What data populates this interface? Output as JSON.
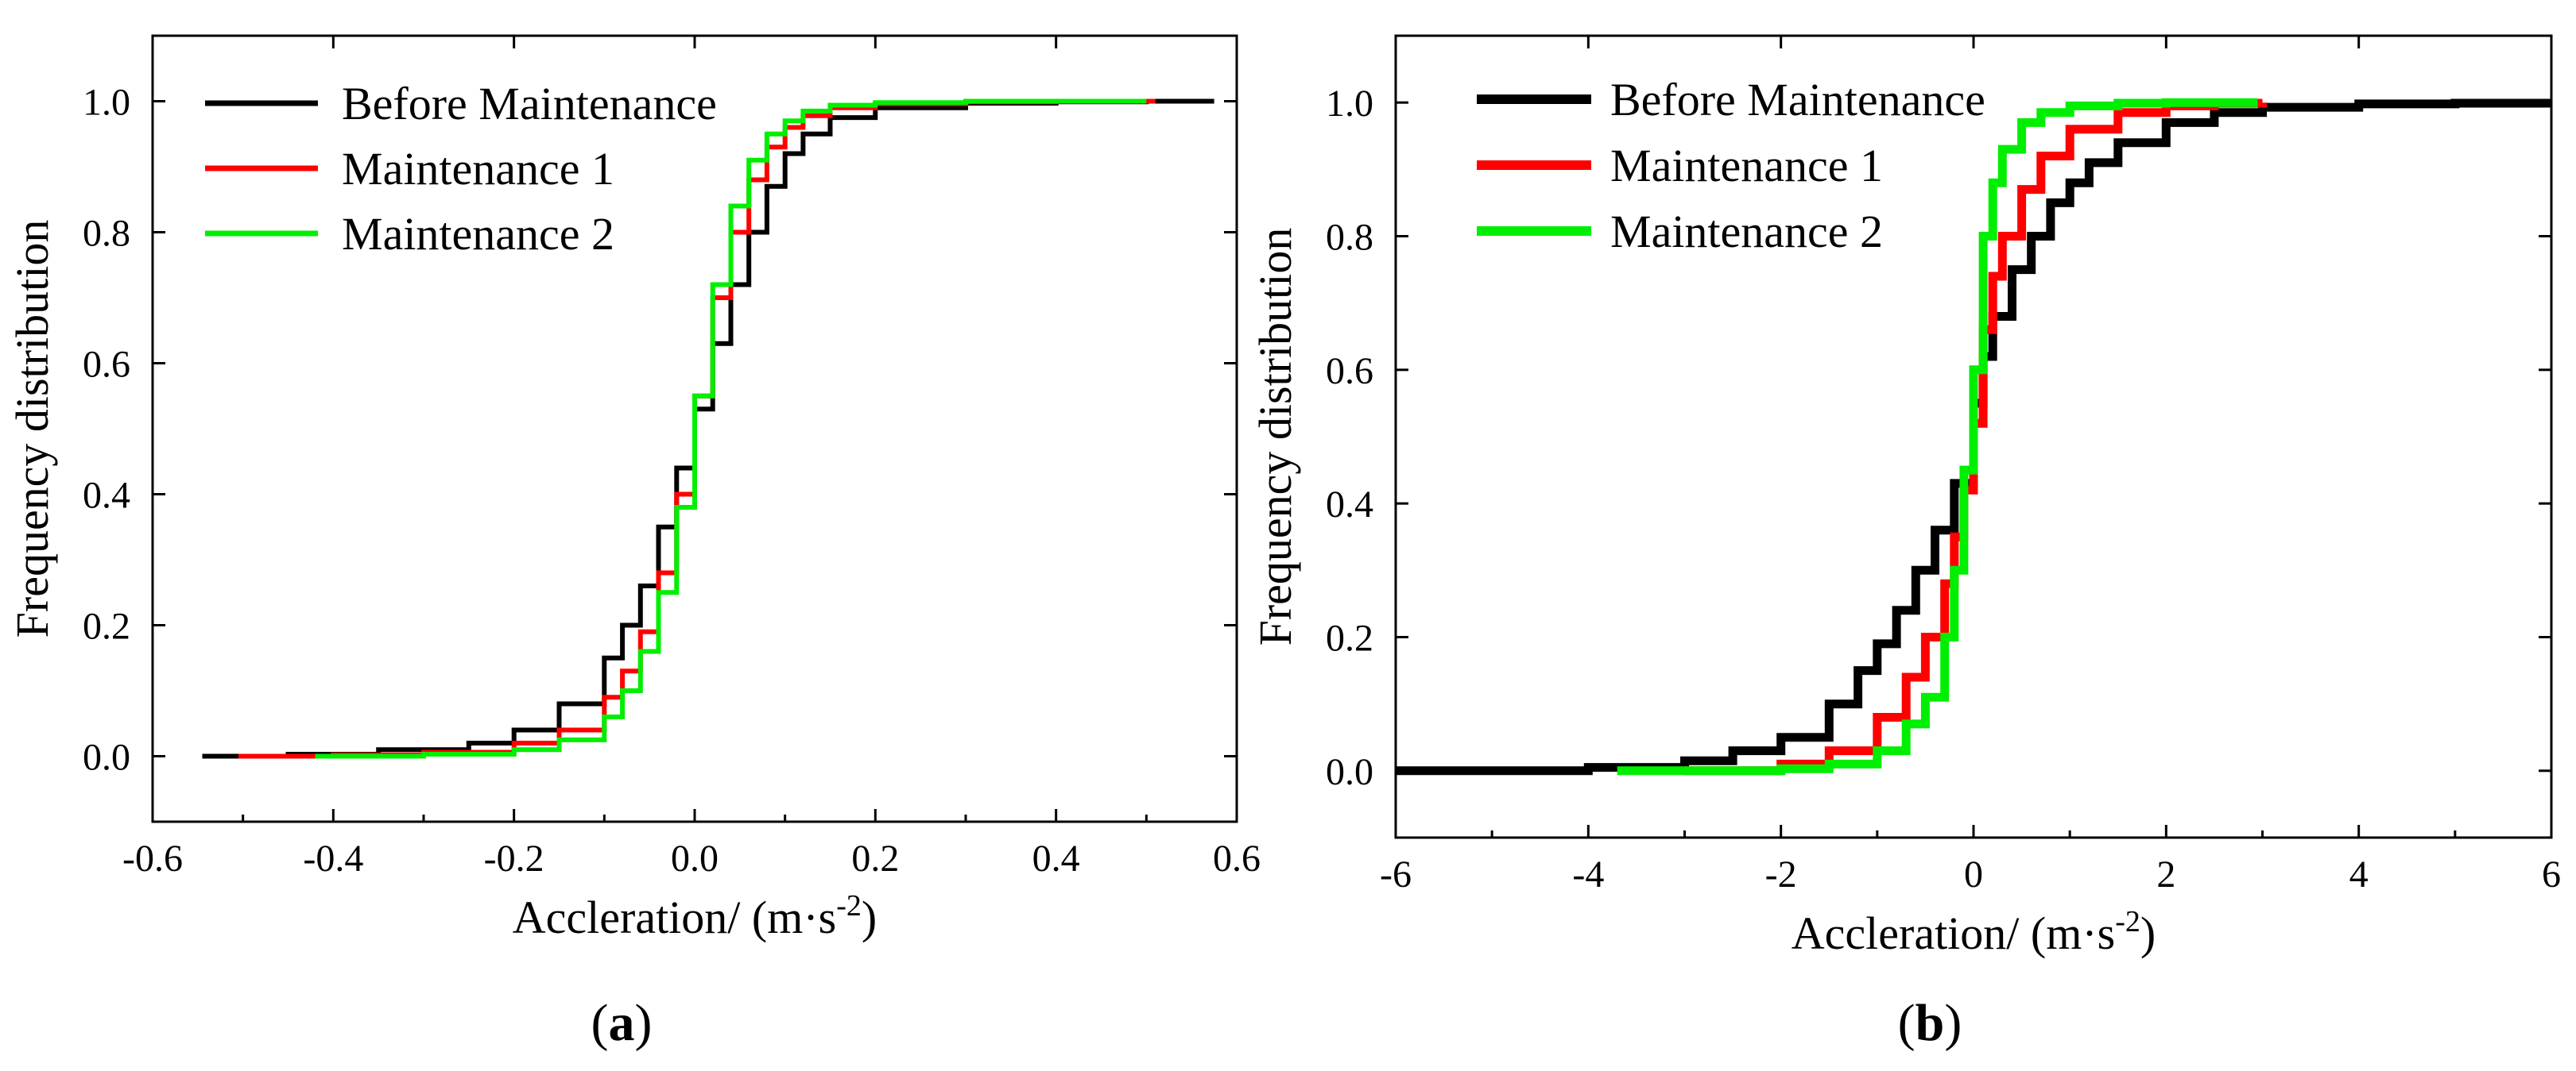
{
  "chart_data": [
    {
      "type": "line",
      "subtype": "step-cdf",
      "panel_label": "a",
      "title": "",
      "xlabel": "Accleration/ (m·s",
      "xlabel_superscript": "-2",
      "xlabel_suffix": ")",
      "ylabel": "Frequency distribution",
      "xlim": [
        -0.6,
        0.6
      ],
      "ylim": [
        -0.1,
        1.1
      ],
      "xticks": [
        -0.6,
        -0.4,
        -0.2,
        0.0,
        0.2,
        0.4,
        0.6
      ],
      "xtick_labels": [
        "-0.6",
        "-0.4",
        "-0.2",
        "0.0",
        "0.2",
        "0.4",
        "0.6"
      ],
      "yticks": [
        0.0,
        0.2,
        0.4,
        0.6,
        0.8,
        1.0
      ],
      "ytick_labels": [
        "0.0",
        "0.2",
        "0.4",
        "0.6",
        "0.8",
        "1.0"
      ],
      "legend_position": "top-left",
      "series": [
        {
          "name": "Before Maintenance",
          "color": "#000000",
          "x": [
            -0.545,
            -0.45,
            -0.35,
            -0.25,
            -0.2,
            -0.15,
            -0.1,
            -0.08,
            -0.06,
            -0.04,
            -0.02,
            0.0,
            0.02,
            0.04,
            0.06,
            0.08,
            0.1,
            0.12,
            0.15,
            0.2,
            0.3,
            0.4,
            0.5,
            0.575
          ],
          "y": [
            0.0,
            0.003,
            0.01,
            0.02,
            0.04,
            0.08,
            0.15,
            0.2,
            0.26,
            0.35,
            0.44,
            0.53,
            0.63,
            0.72,
            0.8,
            0.87,
            0.92,
            0.95,
            0.975,
            0.99,
            0.997,
            0.999,
            1.0,
            1.0
          ]
        },
        {
          "name": "Maintenance 1",
          "color": "#ff0000",
          "x": [
            -0.505,
            -0.4,
            -0.3,
            -0.2,
            -0.15,
            -0.1,
            -0.08,
            -0.06,
            -0.04,
            -0.02,
            0.0,
            0.02,
            0.04,
            0.06,
            0.08,
            0.1,
            0.12,
            0.15,
            0.2,
            0.3,
            0.4,
            0.51
          ],
          "y": [
            0.0,
            0.002,
            0.006,
            0.02,
            0.04,
            0.09,
            0.13,
            0.19,
            0.28,
            0.4,
            0.55,
            0.7,
            0.8,
            0.88,
            0.93,
            0.96,
            0.978,
            0.99,
            0.996,
            0.999,
            1.0,
            1.0
          ]
        },
        {
          "name": "Maintenance 2",
          "color": "#00ee00",
          "x": [
            -0.42,
            -0.3,
            -0.2,
            -0.15,
            -0.1,
            -0.08,
            -0.06,
            -0.04,
            -0.02,
            0.0,
            0.02,
            0.04,
            0.06,
            0.08,
            0.1,
            0.12,
            0.15,
            0.2,
            0.3,
            0.5
          ],
          "y": [
            0.0,
            0.003,
            0.01,
            0.025,
            0.06,
            0.1,
            0.16,
            0.25,
            0.38,
            0.55,
            0.72,
            0.84,
            0.91,
            0.95,
            0.97,
            0.985,
            0.994,
            0.998,
            1.0,
            1.0
          ]
        }
      ]
    },
    {
      "type": "line",
      "subtype": "step-cdf",
      "panel_label": "b",
      "title": "",
      "xlabel": "Accleration/ (m·s",
      "xlabel_superscript": "-2",
      "xlabel_suffix": ")",
      "ylabel": "Frequency distribution",
      "xlim": [
        -6,
        6
      ],
      "ylim": [
        -0.1,
        1.1
      ],
      "xticks": [
        -6,
        -4,
        -2,
        0,
        2,
        4,
        6
      ],
      "xtick_labels": [
        "-6",
        "-4",
        "-2",
        "0",
        "2",
        "4",
        "6"
      ],
      "yticks": [
        0.0,
        0.2,
        0.4,
        0.6,
        0.8,
        1.0
      ],
      "ytick_labels": [
        "0.0",
        "0.2",
        "0.4",
        "0.6",
        "0.8",
        "1.0"
      ],
      "legend_position": "top-left",
      "series": [
        {
          "name": "Before Maintenance",
          "color": "#000000",
          "x": [
            -6.0,
            -4.0,
            -3.0,
            -2.5,
            -2.0,
            -1.5,
            -1.2,
            -1.0,
            -0.8,
            -0.6,
            -0.4,
            -0.2,
            0.0,
            0.1,
            0.2,
            0.4,
            0.6,
            0.8,
            1.0,
            1.2,
            1.5,
            2.0,
            2.5,
            3.0,
            4.0,
            5.0,
            6.0
          ],
          "y": [
            0.0,
            0.005,
            0.015,
            0.03,
            0.05,
            0.1,
            0.15,
            0.19,
            0.24,
            0.3,
            0.36,
            0.43,
            0.55,
            0.62,
            0.68,
            0.75,
            0.8,
            0.85,
            0.88,
            0.91,
            0.94,
            0.97,
            0.985,
            0.993,
            0.998,
            0.999,
            1.0
          ]
        },
        {
          "name": "Maintenance 1",
          "color": "#ff0000",
          "x": [
            -3.0,
            -2.0,
            -1.5,
            -1.0,
            -0.7,
            -0.5,
            -0.3,
            -0.2,
            -0.1,
            0.0,
            0.1,
            0.2,
            0.3,
            0.5,
            0.7,
            1.0,
            1.5,
            2.0,
            2.5,
            3.0
          ],
          "y": [
            0.0,
            0.01,
            0.03,
            0.08,
            0.14,
            0.2,
            0.28,
            0.35,
            0.42,
            0.52,
            0.66,
            0.74,
            0.8,
            0.87,
            0.92,
            0.96,
            0.985,
            0.995,
            0.999,
            1.0
          ]
        },
        {
          "name": "Maintenance 2",
          "color": "#00ee00",
          "x": [
            -3.7,
            -2.0,
            -1.5,
            -1.0,
            -0.7,
            -0.5,
            -0.3,
            -0.2,
            -0.1,
            0.0,
            0.1,
            0.2,
            0.3,
            0.5,
            0.7,
            1.0,
            1.5,
            2.0,
            2.95
          ],
          "y": [
            0.0,
            0.003,
            0.01,
            0.03,
            0.07,
            0.11,
            0.2,
            0.3,
            0.45,
            0.6,
            0.8,
            0.88,
            0.93,
            0.97,
            0.985,
            0.995,
            0.999,
            1.0,
            1.0
          ]
        }
      ]
    }
  ]
}
